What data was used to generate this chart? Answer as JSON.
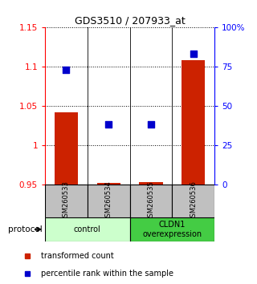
{
  "title": "GDS3510 / 207933_at",
  "samples": [
    "GSM260533",
    "GSM260534",
    "GSM260535",
    "GSM260536"
  ],
  "red_values": [
    1.042,
    0.952,
    0.953,
    1.108
  ],
  "blue_values_pct": [
    73,
    38,
    38,
    83
  ],
  "ylim_left": [
    0.95,
    1.15
  ],
  "ylim_right": [
    0,
    100
  ],
  "yticks_left": [
    0.95,
    1.0,
    1.05,
    1.1,
    1.15
  ],
  "yticks_right": [
    0,
    25,
    50,
    75,
    100
  ],
  "ytick_labels_left": [
    "0.95",
    "1",
    "1.05",
    "1.1",
    "1.15"
  ],
  "ytick_labels_right": [
    "0",
    "25",
    "50",
    "75",
    "100%"
  ],
  "groups": [
    {
      "label": "control",
      "samples": [
        0,
        1
      ],
      "color": "#ccffcc"
    },
    {
      "label": "CLDN1\noverexpression",
      "samples": [
        2,
        3
      ],
      "color": "#44cc44"
    }
  ],
  "protocol_label": "protocol",
  "legend_red_label": "transformed count",
  "legend_blue_label": "percentile rank within the sample",
  "bar_color": "#cc2200",
  "dot_color": "#0000cc",
  "bar_width": 0.55,
  "dot_size": 30,
  "background_color": "#ffffff",
  "sample_box_color": "#c0c0c0"
}
